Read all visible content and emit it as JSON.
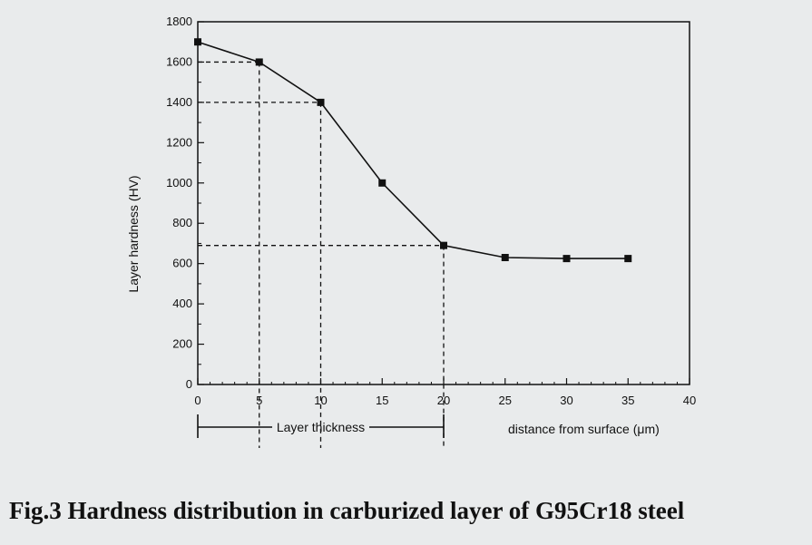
{
  "chart_data": {
    "type": "line",
    "x": [
      0,
      5,
      10,
      15,
      20,
      25,
      30,
      35
    ],
    "series": [
      {
        "values": [
          1700,
          1600,
          1400,
          1000,
          690,
          630,
          625,
          625
        ]
      }
    ],
    "xlabel": "distance from surface (μm)",
    "ylabel": "Layer hardness (HV)",
    "xlim": [
      0,
      40
    ],
    "ylim": [
      0,
      1800
    ],
    "xticks": [
      0,
      5,
      10,
      15,
      20,
      25,
      30,
      35,
      40
    ],
    "yticks": [
      0,
      200,
      400,
      600,
      800,
      1000,
      1200,
      1400,
      1600,
      1800
    ],
    "grid": false,
    "guides": [
      {
        "x": 5,
        "y": 1600
      },
      {
        "x": 10,
        "y": 1400
      },
      {
        "x": 20,
        "y": 690
      }
    ],
    "bracket": {
      "label": "Layer thickness",
      "from": 0,
      "to": 20
    }
  },
  "caption": "Fig.3 Hardness distribution in carburized layer of G95Cr18 steel"
}
